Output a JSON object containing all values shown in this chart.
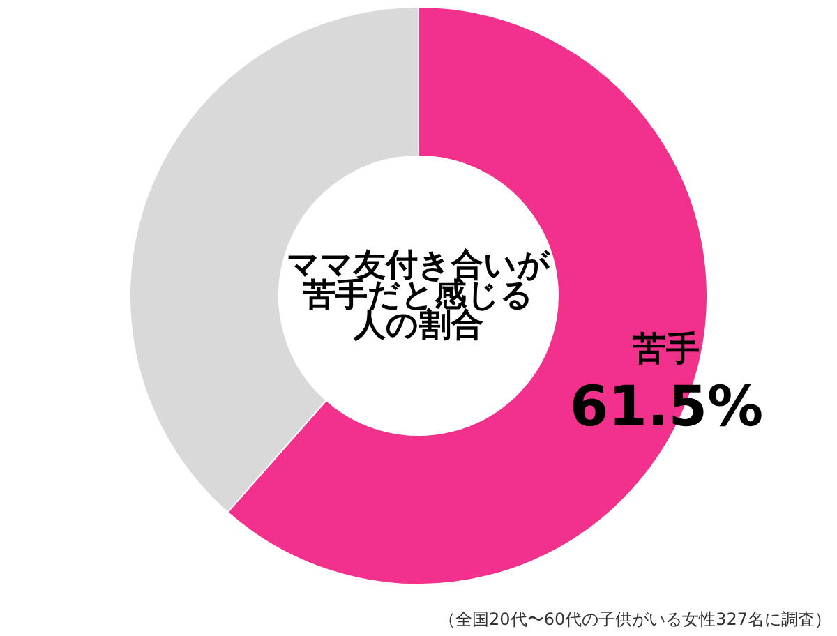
{
  "chart_data": {
    "type": "donut",
    "title": "ママ友付き合いが苦手だと感じる人の割合",
    "categories": [
      "苦手",
      null
    ],
    "values": [
      61.5,
      38.5
    ],
    "colors": [
      "#f2318d",
      "#d9d9d9"
    ],
    "value_labels": [
      "61.5%",
      null
    ],
    "annotations": [
      "（全国20代〜60代の子供がいる女性327名に調査）"
    ]
  }
}
